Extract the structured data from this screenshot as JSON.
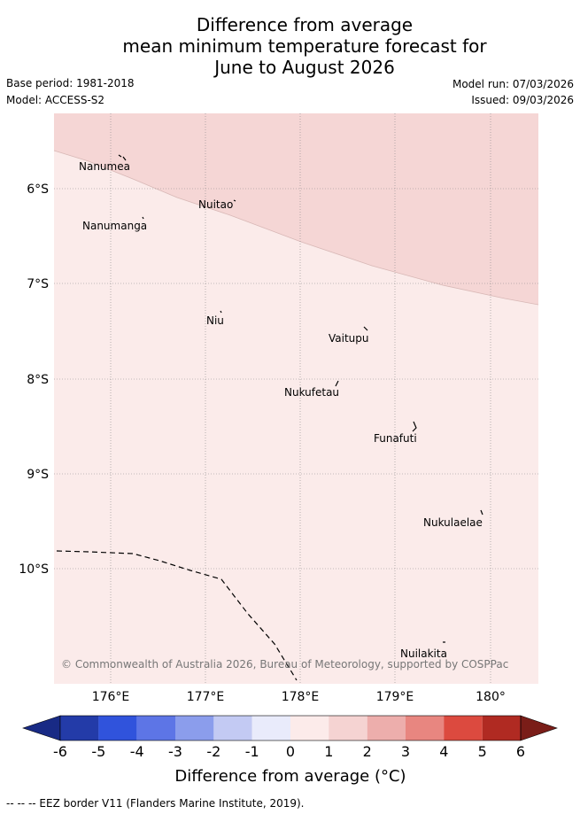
{
  "title": {
    "line1": "Difference from average",
    "line2": "mean minimum temperature forecast for",
    "line3": "June to August 2026"
  },
  "header": {
    "base_period": "Base period: 1981-2018",
    "model": "Model: ACCESS-S2",
    "model_run": "Model run: 07/03/2026",
    "issued": "Issued: 09/03/2026"
  },
  "map": {
    "lon_ticks": [
      "176°E",
      "177°E",
      "178°E",
      "179°E",
      "180°"
    ],
    "lat_ticks": [
      "6°S",
      "7°S",
      "8°S",
      "9°S",
      "10°S"
    ],
    "places": [
      {
        "name": "Nanumea",
        "lon": 176.12,
        "lat": -5.67
      },
      {
        "name": "Nuitao",
        "lon": 177.32,
        "lat": -6.12
      },
      {
        "name": "Nanumanga",
        "lon": 176.32,
        "lat": -6.29
      },
      {
        "name": "Niu",
        "lon": 177.16,
        "lat": -7.29
      },
      {
        "name": "Vaitupu",
        "lon": 178.68,
        "lat": -7.48
      },
      {
        "name": "Nukufetau",
        "lon": 178.38,
        "lat": -8.03
      },
      {
        "name": "Funafuti",
        "lon": 179.2,
        "lat": -8.52
      },
      {
        "name": "Nukulaelae",
        "lon": 179.85,
        "lat": -9.38
      },
      {
        "name": "Nuilakita",
        "lon": 179.48,
        "lat": -10.78
      }
    ],
    "zones": {
      "upper_category": "1 to 2",
      "lower_category": "0 to 1"
    },
    "copyright": "© Commonwealth of Australia 2026, Bureau of Meteorology, supported by COSPPac"
  },
  "colorbar": {
    "ticks": [
      "-6",
      "-5",
      "-4",
      "-3",
      "-2",
      "-1",
      "0",
      "1",
      "2",
      "3",
      "4",
      "5",
      "6"
    ],
    "colors": [
      "#233ba8",
      "#3053dc",
      "#5d75e6",
      "#8b9dec",
      "#c3caf3",
      "#e9ebfb",
      "#fcebea",
      "#f5d3d2",
      "#edaeac",
      "#e88680",
      "#dc4a3f",
      "#b02a22"
    ],
    "low_extend_color": "#182a85",
    "high_extend_color": "#7a1d18",
    "label": "Difference from average (°C)"
  },
  "colors": {
    "zone_upper": "#f5d6d5",
    "zone_lower": "#fbebea",
    "grid": "#888888"
  },
  "footnote": "-- -- -- EEZ border V11 (Flanders Marine Institute, 2019)."
}
